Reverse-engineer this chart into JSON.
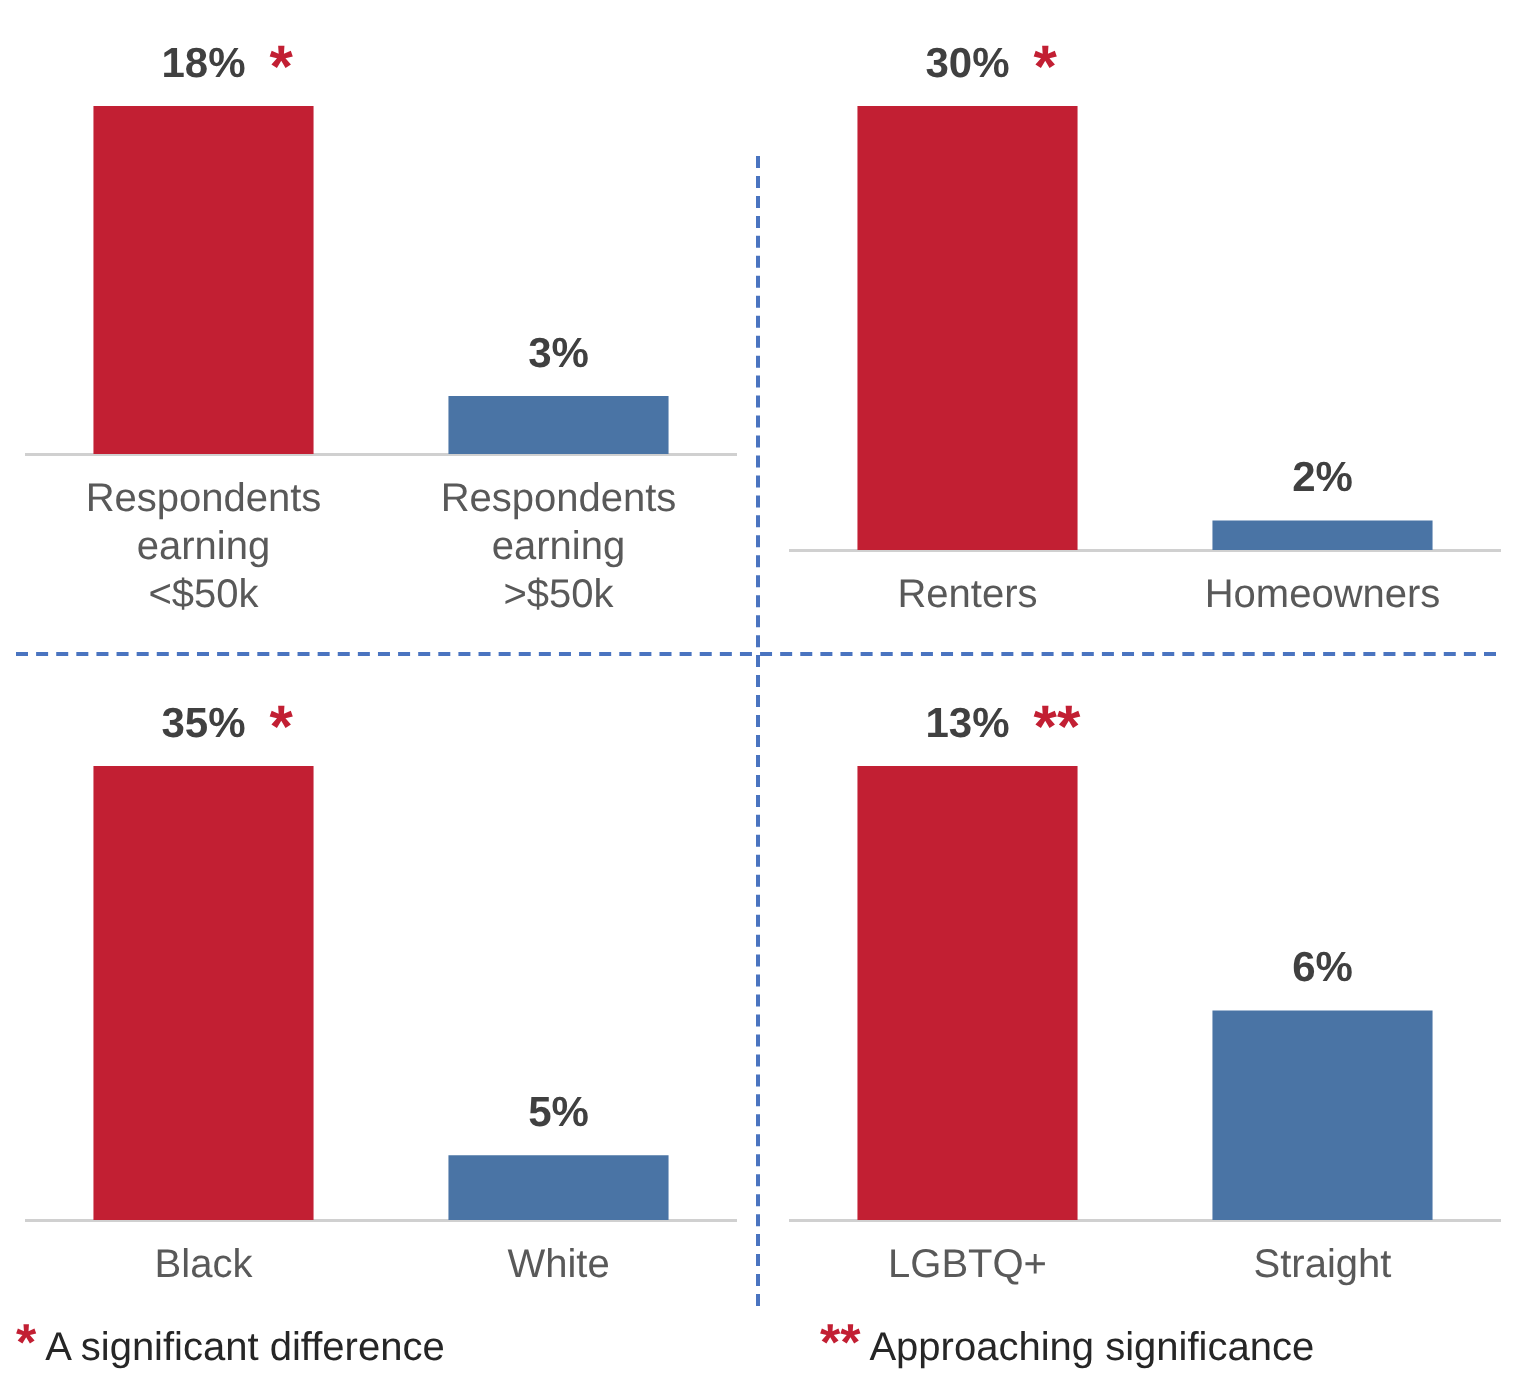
{
  "chart_data": [
    {
      "type": "bar",
      "categories": [
        "Respondents earning <$50k",
        "Respondents earning >$50k"
      ],
      "values": [
        18,
        3
      ],
      "value_labels": [
        "18%",
        "3%"
      ],
      "colors": [
        "#c21f33",
        "#4a74a5"
      ],
      "annotations": [
        {
          "text": "*",
          "x": "Respondents earning <$50k",
          "y": 18
        }
      ]
    },
    {
      "type": "bar",
      "categories": [
        "Renters",
        "Homeowners"
      ],
      "values": [
        30,
        2
      ],
      "value_labels": [
        "30%",
        "2%"
      ],
      "colors": [
        "#c21f33",
        "#4a74a5"
      ],
      "annotations": [
        {
          "text": "*",
          "x": "Renters",
          "y": 30
        }
      ]
    },
    {
      "type": "bar",
      "categories": [
        "Black",
        "White"
      ],
      "values": [
        35,
        5
      ],
      "value_labels": [
        "35%",
        "5%"
      ],
      "colors": [
        "#c21f33",
        "#4a74a5"
      ],
      "annotations": [
        {
          "text": "*",
          "x": "Black",
          "y": 35
        },
        "* A significant difference"
      ]
    },
    {
      "type": "bar",
      "categories": [
        "LGBTQ+",
        "Straight"
      ],
      "values": [
        13,
        6
      ],
      "value_labels": [
        "13%",
        "6%"
      ],
      "colors": [
        "#c21f33",
        "#4a74a5"
      ],
      "annotations": [
        {
          "text": "**",
          "x": "LGBTQ+",
          "y": 13
        },
        "** Approaching significance"
      ]
    }
  ]
}
